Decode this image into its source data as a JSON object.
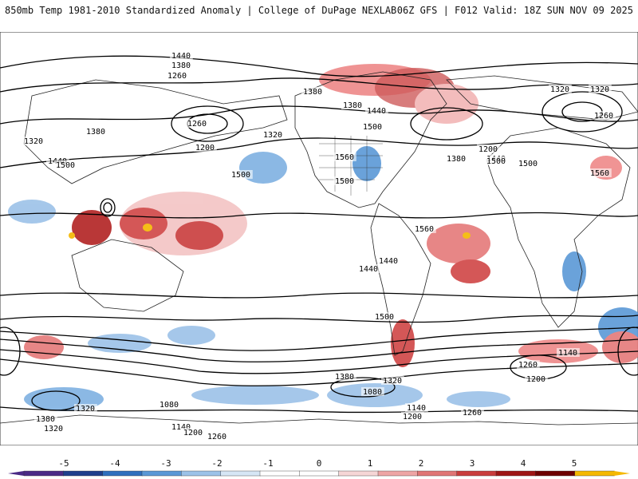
{
  "header": {
    "title": "850mb Temp 1981-2010 Standardized Anomaly | College of DuPage NEXLAB",
    "run_info": "06Z GFS | F012 Valid: 18Z SUN NOV 09 2025"
  },
  "contour_labels": [
    "1440",
    "1380",
    "1260",
    "1380",
    "1320",
    "1380",
    "1260",
    "1200",
    "1320",
    "1440",
    "1380",
    "1320",
    "1500",
    "1440",
    "1500",
    "1560",
    "1500",
    "1440",
    "1380",
    "1500",
    "1320",
    "1200",
    "1260",
    "1140",
    "1080",
    "1140",
    "1200",
    "1320",
    "1260",
    "1080",
    "1140",
    "1200",
    "1260",
    "1320",
    "1380",
    "1500",
    "1560",
    "1500",
    "1440",
    "1440",
    "1500",
    "1380",
    "1320",
    "1260",
    "1200",
    "1560"
  ],
  "colorbar": {
    "ticks": [
      "-5",
      "-4",
      "-3",
      "-2",
      "-1",
      "0",
      "1",
      "2",
      "3",
      "4",
      "5"
    ],
    "colors": [
      "#4b2a86",
      "#1f3f8c",
      "#2f6fbd",
      "#5a98d6",
      "#9cc2e8",
      "#d6e6f5",
      "#ffffff",
      "#ffffff",
      "#f6d6d6",
      "#eea5a5",
      "#e07575",
      "#c93c3c",
      "#9e1515",
      "#6e0000",
      "#f5b800"
    ]
  }
}
